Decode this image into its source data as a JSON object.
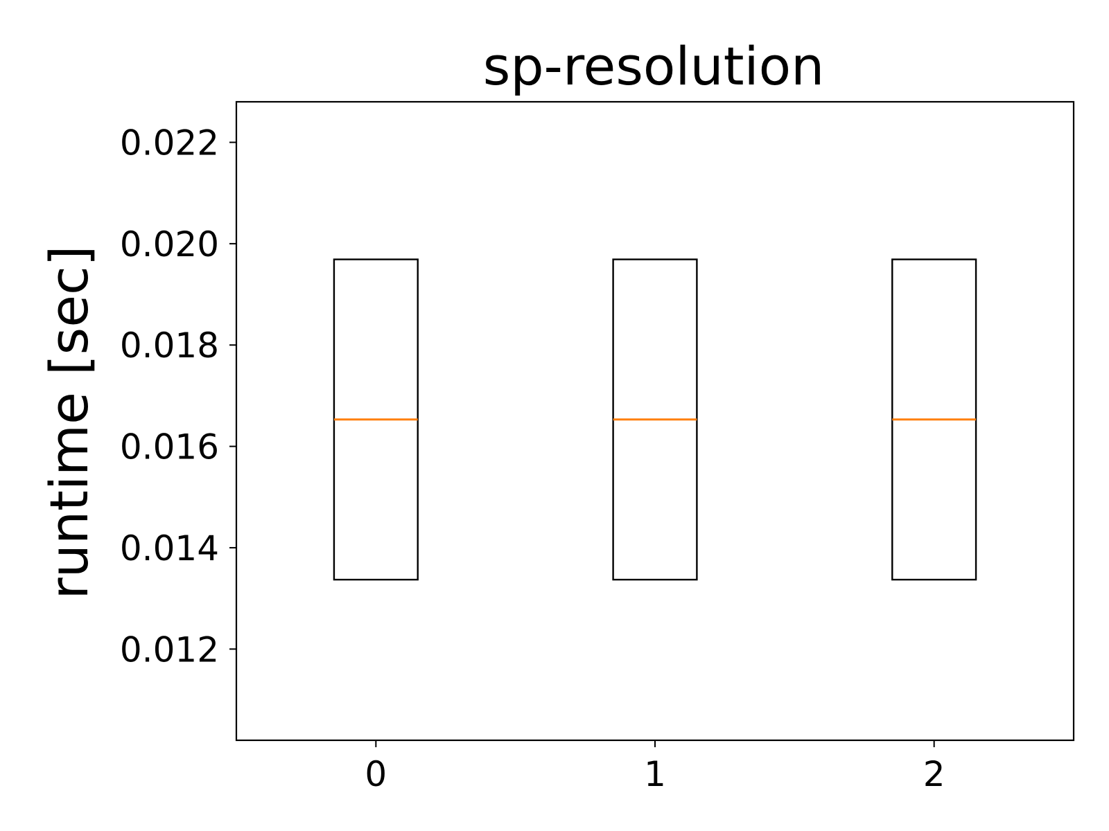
{
  "chart_data": {
    "type": "box",
    "title": "sp-resolution",
    "xlabel": "",
    "ylabel": "runtime [sec]",
    "ylim": [
      0.0102,
      0.0228
    ],
    "xlim": [
      -0.5,
      2.5
    ],
    "y_ticks": [
      0.012,
      0.014,
      0.016,
      0.018,
      0.02,
      0.022
    ],
    "y_tick_labels": [
      "0.012",
      "0.014",
      "0.016",
      "0.018",
      "0.020",
      "0.022"
    ],
    "categories": [
      "0",
      "1",
      "2"
    ],
    "category_colors": [
      "#ff0000",
      "#000000",
      "#000000"
    ],
    "boxes": [
      {
        "category": "0",
        "q1": 0.01337,
        "median": 0.01653,
        "q3": 0.01969
      },
      {
        "category": "1",
        "q1": 0.01337,
        "median": 0.01653,
        "q3": 0.01969
      },
      {
        "category": "2",
        "q1": 0.01337,
        "median": 0.01653,
        "q3": 0.01969
      }
    ],
    "box_width": 0.3,
    "colors": {
      "box": "#000000",
      "median": "#ff7f0e",
      "axis": "#000000"
    },
    "grid": false,
    "legend": "none"
  }
}
